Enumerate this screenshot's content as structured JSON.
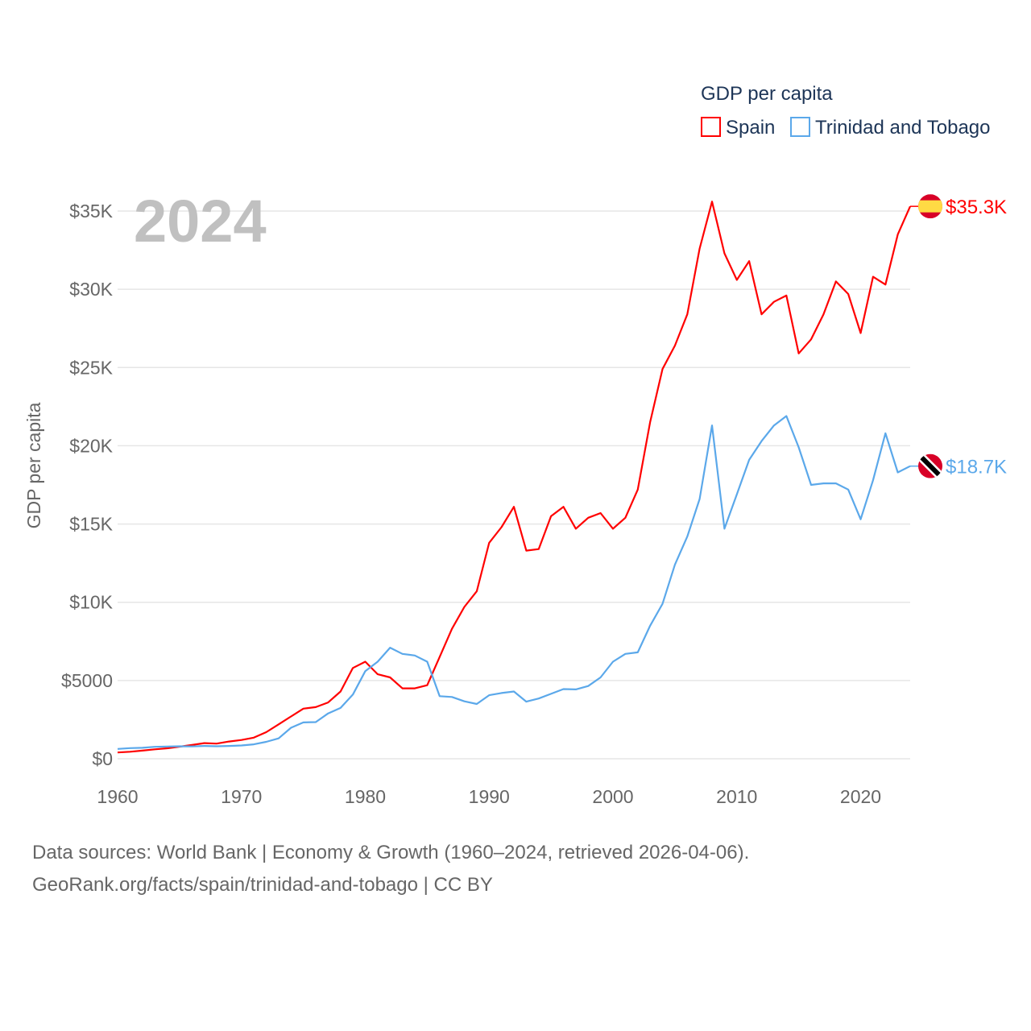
{
  "chart_data": {
    "type": "line",
    "title": "GDP per capita",
    "year_label": "2024",
    "ylabel": "GDP per capita",
    "xlabel": "",
    "xlim": [
      1960,
      2024
    ],
    "ylim": [
      0,
      35000
    ],
    "grid": true,
    "legend_position": "top-right",
    "x_ticks": [
      1960,
      1970,
      1980,
      1990,
      2000,
      2010,
      2020
    ],
    "x_tick_labels": [
      "1960",
      "1970",
      "1980",
      "1990",
      "2000",
      "2010",
      "2020"
    ],
    "y_ticks": [
      0,
      5000,
      10000,
      15000,
      20000,
      25000,
      30000,
      35000
    ],
    "y_tick_labels": [
      "$0",
      "$5000",
      "$10K",
      "$15K",
      "$20K",
      "$25K",
      "$30K",
      "$35K"
    ],
    "x": [
      1960,
      1961,
      1962,
      1963,
      1964,
      1965,
      1966,
      1967,
      1968,
      1969,
      1970,
      1971,
      1972,
      1973,
      1974,
      1975,
      1976,
      1977,
      1978,
      1979,
      1980,
      1981,
      1982,
      1983,
      1984,
      1985,
      1986,
      1987,
      1988,
      1989,
      1990,
      1991,
      1992,
      1993,
      1994,
      1995,
      1996,
      1997,
      1998,
      1999,
      2000,
      2001,
      2002,
      2003,
      2004,
      2005,
      2006,
      2007,
      2008,
      2009,
      2010,
      2011,
      2012,
      2013,
      2014,
      2015,
      2016,
      2017,
      2018,
      2019,
      2020,
      2021,
      2022,
      2023,
      2024
    ],
    "series": [
      {
        "name": "Spain",
        "color": "#ff0000",
        "end_label": "$35.3K",
        "flag": "spain-flag",
        "values": [
          400,
          450,
          520,
          600,
          670,
          770,
          880,
          1000,
          970,
          1100,
          1200,
          1350,
          1700,
          2200,
          2700,
          3200,
          3300,
          3600,
          4300,
          5800,
          6200,
          5400,
          5200,
          4500,
          4500,
          4700,
          6500,
          8300,
          9700,
          10700,
          13800,
          14800,
          16100,
          13300,
          13400,
          15500,
          16100,
          14700,
          15400,
          15700,
          14700,
          15400,
          17200,
          21500,
          24900,
          26400,
          28400,
          32600,
          35600,
          32300,
          30600,
          31800,
          28400,
          29200,
          29600,
          25900,
          26800,
          28400,
          30500,
          29700,
          27200,
          30800,
          30300,
          33500,
          35300
        ]
      },
      {
        "name": "Trinidad and Tobago",
        "color": "#5ba8ea",
        "end_label": "$18.7K",
        "flag": "trinidad-flag",
        "values": [
          630,
          680,
          700,
          760,
          780,
          800,
          790,
          820,
          800,
          820,
          850,
          920,
          1080,
          1300,
          1980,
          2320,
          2340,
          2900,
          3250,
          4100,
          5600,
          6200,
          7100,
          6700,
          6600,
          6200,
          4000,
          3950,
          3670,
          3500,
          4060,
          4200,
          4300,
          3650,
          3850,
          4150,
          4450,
          4430,
          4650,
          5200,
          6200,
          6700,
          6800,
          8500,
          9900,
          12400,
          14200,
          16600,
          21300,
          14700,
          16900,
          19100,
          20300,
          21300,
          21900,
          19900,
          17500,
          17600,
          17600,
          17200,
          15300,
          17800,
          20800,
          18300,
          18700
        ]
      }
    ]
  },
  "footer": {
    "line1": "Data sources: World Bank | Economy & Growth (1960–2024, retrieved 2026-04-06).",
    "line2": "GeoRank.org/facts/spain/trinidad-and-tobago | CC BY"
  }
}
